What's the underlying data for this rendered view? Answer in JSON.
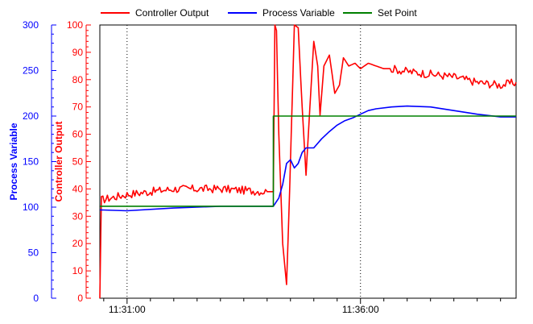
{
  "chart_data": {
    "type": "line",
    "legend": {
      "placement": "top",
      "entries": [
        {
          "label": "Controller Output",
          "color": "#ff0000"
        },
        {
          "label": "Process Variable",
          "color": "#0000ff"
        },
        {
          "label": "Set Point",
          "color": "#008000"
        }
      ]
    },
    "x_axis": {
      "unit": "time",
      "range": [
        "11:30:25",
        "11:39:20"
      ],
      "labeled_ticks": [
        "11:31:00",
        "11:36:00"
      ],
      "minor_tick_interval_seconds": 30,
      "vertical_gridlines": [
        "11:31:00",
        "11:36:00"
      ]
    },
    "y_axes": [
      {
        "id": "pv",
        "title": "Process Variable",
        "color": "#0000ff",
        "position": "left-outer",
        "range": [
          0,
          300
        ],
        "ticks": [
          0,
          50,
          100,
          150,
          200,
          250,
          300
        ],
        "tick_labels": [
          "0",
          "50",
          "100",
          "150",
          "200",
          "250",
          "300"
        ]
      },
      {
        "id": "co",
        "title": "Controller Output",
        "color": "#ff0000",
        "position": "left-inner",
        "range": [
          0,
          100
        ],
        "ticks": [
          0,
          10,
          20,
          30,
          40,
          50,
          60,
          70,
          80,
          90,
          100
        ],
        "tick_labels": [
          "0",
          "10",
          "20",
          "30",
          "40",
          "50",
          "60",
          "70",
          "80",
          "90",
          "100"
        ]
      }
    ],
    "grid": "x-only-dotted",
    "series": [
      {
        "name": "Controller Output",
        "axis": "co",
        "color": "#ff0000",
        "noise": 1.5,
        "x": [
          "11:30:25",
          "11:30:27",
          "11:31:00",
          "11:32:00",
          "11:33:00",
          "11:34:00",
          "11:34:08",
          "11:34:10",
          "11:34:12",
          "11:34:15",
          "11:34:20",
          "11:34:25",
          "11:34:29",
          "11:34:35",
          "11:34:40",
          "11:34:45",
          "11:34:50",
          "11:34:55",
          "11:35:00",
          "11:35:05",
          "11:35:08",
          "11:35:13",
          "11:35:20",
          "11:35:27",
          "11:35:33",
          "11:35:38",
          "11:35:45",
          "11:35:53",
          "11:36:00",
          "11:36:10",
          "11:36:20",
          "11:36:30",
          "11:36:40",
          "11:37:00",
          "11:37:30",
          "11:38:00",
          "11:38:30",
          "11:39:00",
          "11:39:20"
        ],
        "y": [
          0,
          36,
          38,
          40,
          40,
          39,
          39,
          100,
          98,
          60,
          20,
          5,
          40,
          100,
          99,
          70,
          45,
          70,
          94,
          85,
          67,
          85,
          89,
          75,
          78,
          88,
          85,
          86,
          84,
          86,
          85,
          84,
          84,
          83,
          82,
          81,
          79,
          78,
          79
        ]
      },
      {
        "name": "Process Variable",
        "axis": "pv",
        "color": "#0000ff",
        "noise": 0,
        "x": [
          "11:30:25",
          "11:31:00",
          "11:32:00",
          "11:33:00",
          "11:34:00",
          "11:34:08",
          "11:34:15",
          "11:34:20",
          "11:34:25",
          "11:34:30",
          "11:34:35",
          "11:34:40",
          "11:34:45",
          "11:34:50",
          "11:35:00",
          "11:35:10",
          "11:35:20",
          "11:35:30",
          "11:35:40",
          "11:35:50",
          "11:36:00",
          "11:36:10",
          "11:36:20",
          "11:36:40",
          "11:37:00",
          "11:37:30",
          "11:38:00",
          "11:38:30",
          "11:39:00",
          "11:39:20"
        ],
        "y": [
          97,
          96,
          99,
          101,
          101,
          101,
          110,
          125,
          148,
          152,
          143,
          148,
          160,
          165,
          165,
          175,
          183,
          190,
          195,
          198,
          202,
          206,
          208,
          210,
          211,
          210,
          206,
          202,
          199,
          199
        ]
      },
      {
        "name": "Set Point",
        "axis": "pv",
        "color": "#008000",
        "noise": 0,
        "x": [
          "11:30:25",
          "11:34:08",
          "11:34:08",
          "11:39:20"
        ],
        "y": [
          101,
          101,
          200,
          200
        ]
      }
    ]
  }
}
